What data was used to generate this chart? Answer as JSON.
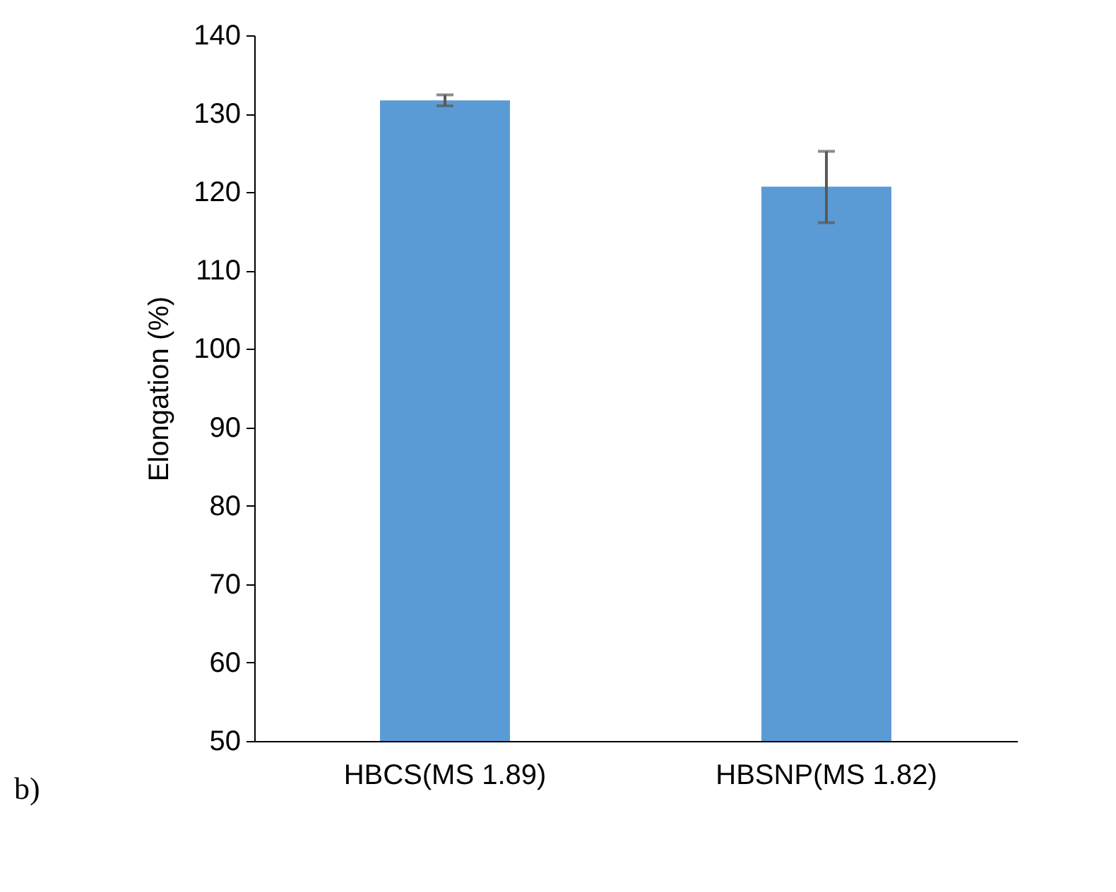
{
  "chart_data": {
    "type": "bar",
    "ylabel": "Elongation (%)",
    "categories": [
      "HBCS(MS 1.89)",
      "HBSNP(MS 1.82)"
    ],
    "values": [
      131.7,
      120.7
    ],
    "errors": [
      [
        131.0,
        132.4
      ],
      [
        116.1,
        125.2
      ]
    ],
    "color": "#5b9bd5",
    "ylim": [
      50,
      140
    ],
    "yticks": [
      50,
      60,
      70,
      80,
      90,
      100,
      110,
      120,
      130,
      140
    ],
    "grid": false,
    "annotations": [
      "b)"
    ]
  }
}
